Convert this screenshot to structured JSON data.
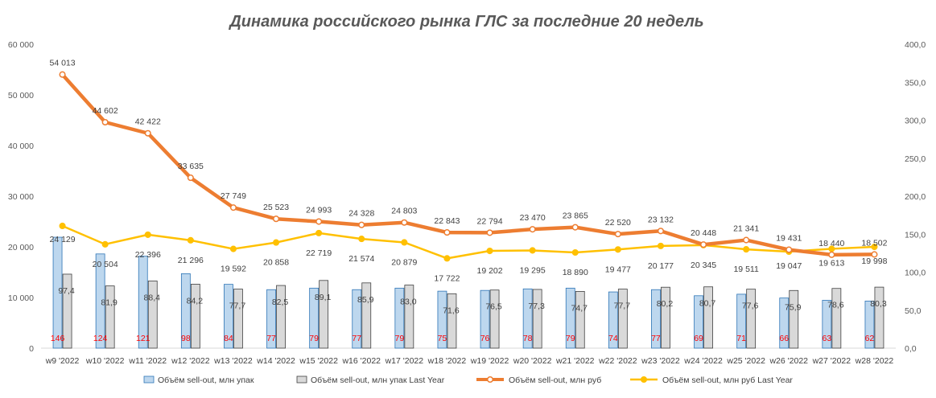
{
  "chart_data": {
    "type": "bar+line",
    "title": "Динамика российского рынка ГЛС за последние 20 недель",
    "categories": [
      "w9 '2022",
      "w10 '2022",
      "w11 '2022",
      "w12 '2022",
      "w13 '2022",
      "w14 '2022",
      "w15 '2022",
      "w16 '2022",
      "w17 '2022",
      "w18 '2022",
      "w19 '2022",
      "w20 '2022",
      "w21 '2022",
      "w22 '2022",
      "w23 '2022",
      "w24 '2022",
      "w25 '2022",
      "w26 '2022",
      "w27 '2022",
      "w28 '2022"
    ],
    "left_axis": {
      "min": 0,
      "max": 60000,
      "step": 10000,
      "tick_labels": [
        "0",
        "10 000",
        "20 000",
        "30 000",
        "40 000",
        "50 000",
        "60 000"
      ]
    },
    "right_axis": {
      "min": 0,
      "max": 400,
      "step": 50,
      "tick_labels": [
        "0,0",
        "50,0",
        "100,0",
        "150,0",
        "200,0",
        "250,0",
        "300,0",
        "350,0",
        "400,0"
      ]
    },
    "series": [
      {
        "name": "Объём sell-out, млн упак",
        "kind": "bar",
        "axis": "right",
        "color": "#bdd7ee",
        "stroke": "#2e75b6",
        "values": [
          146,
          124,
          121,
          98,
          84,
          77,
          79,
          77,
          79,
          75,
          76,
          78,
          79,
          74,
          77,
          69,
          71,
          66,
          63,
          62
        ],
        "labels": [
          "146",
          "124",
          "121",
          "98",
          "84",
          "77",
          "79",
          "77",
          "79",
          "75",
          "76",
          "78",
          "79",
          "74",
          "77",
          "69",
          "71",
          "66",
          "63",
          "62"
        ],
        "label_color": "#ff0000"
      },
      {
        "name": "Объём sell-out, млн упак Last Year",
        "kind": "bar",
        "axis": "right",
        "color": "#d9d9d9",
        "stroke": "#404040",
        "values": [
          97.4,
          81.9,
          88.4,
          84.2,
          77.7,
          82.5,
          89.1,
          85.9,
          83.0,
          71.6,
          76.5,
          77.3,
          74.7,
          77.7,
          80.2,
          80.7,
          77.6,
          75.9,
          78.6,
          80.3
        ],
        "labels": [
          "97,4",
          "81,9",
          "88,4",
          "84,2",
          "77,7",
          "82,5",
          "89,1",
          "85,9",
          "83,0",
          "71,6",
          "76,5",
          "77,3",
          "74,7",
          "77,7",
          "80,2",
          "80,7",
          "77,6",
          "75,9",
          "78,6",
          "80,3"
        ]
      },
      {
        "name": "Объём sell-out, млн руб",
        "kind": "line",
        "axis": "left",
        "color": "#ed7d31",
        "values": [
          54013,
          44602,
          42422,
          33635,
          27749,
          25523,
          24993,
          24328,
          24803,
          22843,
          22794,
          23470,
          23865,
          22520,
          23132,
          20448,
          21341,
          19431,
          18440,
          18502
        ],
        "labels": [
          "54 013",
          "44 602",
          "42 422",
          "33 635",
          "27 749",
          "25 523",
          "24 993",
          "24 328",
          "24 803",
          "22 843",
          "22 794",
          "23 470",
          "23 865",
          "22 520",
          "23 132",
          "20 448",
          "21 341",
          "19 431",
          "18 440",
          "18 502"
        ]
      },
      {
        "name": "Объём sell-out, млн руб Last Year",
        "kind": "line",
        "axis": "left",
        "color": "#ffc000",
        "values": [
          24129,
          20504,
          22396,
          21296,
          19592,
          20858,
          22719,
          21574,
          20879,
          17722,
          19202,
          19295,
          18890,
          19477,
          20177,
          20345,
          19511,
          19047,
          19613,
          19998
        ],
        "labels": [
          "24 129",
          "20 504",
          "22 396",
          "21 296",
          "19 592",
          "20 858",
          "22 719",
          "21 574",
          "20 879",
          "17 722",
          "19 202",
          "19 295",
          "18 890",
          "19 477",
          "20 177",
          "20 345",
          "19 511",
          "19 047",
          "19 613",
          "19 998"
        ]
      }
    ],
    "legend": {
      "placement": "bottom"
    },
    "grid": false
  }
}
